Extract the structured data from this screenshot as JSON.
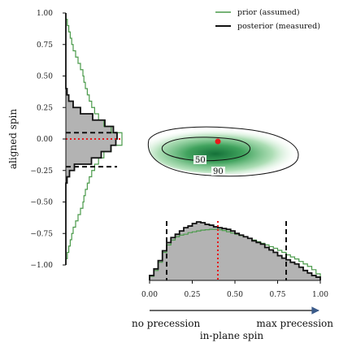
{
  "legend": {
    "prior": "prior (assumed)",
    "posterior": "posterior (measured)"
  },
  "colors": {
    "prior": "#4a9a4a",
    "posterior": "#111111",
    "fill": "#b3b3b3",
    "median": "#e8191b",
    "density": "#1f7a3a"
  },
  "chart_data": [
    {
      "type": "histogram",
      "name": "aligned-spin-marginal",
      "orientation": "horizontal",
      "ylabel": "aligned spin",
      "ylim": [
        -1.0,
        1.0
      ],
      "yticks": [
        1.0,
        0.75,
        0.5,
        0.25,
        0.0,
        -0.25,
        -0.5,
        -0.75,
        -1.0
      ],
      "ytick_labels": [
        "1.00",
        "0.75",
        "0.50",
        "0.25",
        "0.00",
        "−0.25",
        "−0.50",
        "−0.75",
        "−1.00"
      ],
      "bin_edges": [
        -1.0,
        -0.95,
        -0.9,
        -0.85,
        -0.8,
        -0.75,
        -0.7,
        -0.65,
        -0.6,
        -0.55,
        -0.5,
        -0.45,
        -0.4,
        -0.35,
        -0.3,
        -0.25,
        -0.2,
        -0.15,
        -0.1,
        -0.05,
        0.0,
        0.05,
        0.1,
        0.15,
        0.2,
        0.25,
        0.3,
        0.35,
        0.4,
        0.45,
        0.5,
        0.55,
        0.6,
        0.65,
        0.7,
        0.75,
        0.8,
        0.85,
        0.9,
        0.95,
        1.0
      ],
      "series": [
        {
          "name": "prior (assumed)",
          "values": [
            0.0,
            0.6,
            1.2,
            1.8,
            2.4,
            3.0,
            4.0,
            5.0,
            6.0,
            7.0,
            7.4,
            8.0,
            8.8,
            9.6,
            10.6,
            11.8,
            13.4,
            15.6,
            18.6,
            23.0,
            23.0,
            18.6,
            15.6,
            13.4,
            11.8,
            10.6,
            9.6,
            8.8,
            8.0,
            7.4,
            7.0,
            6.0,
            5.0,
            4.0,
            3.0,
            2.4,
            1.8,
            1.2,
            0.6,
            0.0
          ]
        },
        {
          "name": "posterior (measured)",
          "values": [
            0,
            0,
            0,
            0,
            0,
            0,
            0,
            0,
            0,
            0,
            0,
            0,
            0,
            0.5,
            1.5,
            3.5,
            10.5,
            14.5,
            18.5,
            20.5,
            21.0,
            19.5,
            16.0,
            11.0,
            6.0,
            3.0,
            1.2,
            0.5,
            0,
            0,
            0,
            0,
            0,
            0,
            0,
            0,
            0,
            0,
            0,
            0
          ]
        }
      ],
      "median": 0.0,
      "interval_90": [
        -0.22,
        0.05
      ]
    },
    {
      "type": "contour",
      "name": "joint-spin-density",
      "xlim": [
        0.0,
        1.0
      ],
      "ylim": [
        -1.0,
        1.0
      ],
      "contour_labels": [
        "50",
        "90"
      ],
      "median_point": [
        0.4,
        0.0
      ]
    },
    {
      "type": "histogram",
      "name": "in-plane-spin-marginal",
      "orientation": "vertical",
      "xlabel": "in-plane spin",
      "xlim": [
        0.0,
        1.0
      ],
      "xticks": [
        0.0,
        0.25,
        0.5,
        0.75,
        1.0
      ],
      "xtick_labels": [
        "0.00",
        "0.25",
        "0.50",
        "0.75",
        "1.00"
      ],
      "bin_edges": [
        0.0,
        0.025,
        0.05,
        0.075,
        0.1,
        0.125,
        0.15,
        0.175,
        0.2,
        0.225,
        0.25,
        0.275,
        0.3,
        0.325,
        0.35,
        0.375,
        0.4,
        0.425,
        0.45,
        0.475,
        0.5,
        0.525,
        0.55,
        0.575,
        0.6,
        0.625,
        0.65,
        0.675,
        0.7,
        0.725,
        0.75,
        0.775,
        0.8,
        0.825,
        0.85,
        0.875,
        0.9,
        0.925,
        0.95,
        0.975,
        1.0
      ],
      "series": [
        {
          "name": "prior (assumed)",
          "values": [
            0.5,
            1.2,
            2.2,
            3.4,
            4.3,
            4.9,
            5.3,
            5.5,
            5.6,
            5.8,
            5.9,
            6.0,
            6.1,
            6.15,
            6.2,
            6.2,
            6.15,
            6.05,
            5.9,
            5.75,
            5.6,
            5.45,
            5.3,
            5.1,
            4.9,
            4.7,
            4.5,
            4.3,
            4.1,
            3.9,
            3.65,
            3.4,
            3.1,
            2.85,
            2.6,
            2.3,
            2.0,
            1.7,
            1.3,
            0.8
          ]
        },
        {
          "name": "posterior (measured)",
          "values": [
            0.6,
            1.4,
            2.4,
            3.6,
            4.6,
            5.2,
            5.6,
            6.0,
            6.4,
            6.6,
            6.9,
            7.1,
            7.0,
            6.8,
            6.7,
            6.5,
            6.4,
            6.3,
            6.2,
            6.0,
            5.7,
            5.5,
            5.3,
            5.1,
            4.8,
            4.6,
            4.4,
            4.0,
            3.7,
            3.4,
            3.0,
            2.7,
            2.5,
            2.2,
            2.0,
            1.6,
            1.2,
            0.9,
            0.6,
            0.4
          ]
        }
      ],
      "median": 0.4,
      "interval_90": [
        0.1,
        0.8
      ]
    }
  ],
  "precession_axis": {
    "left_label": "no precession",
    "right_label": "max precession"
  }
}
